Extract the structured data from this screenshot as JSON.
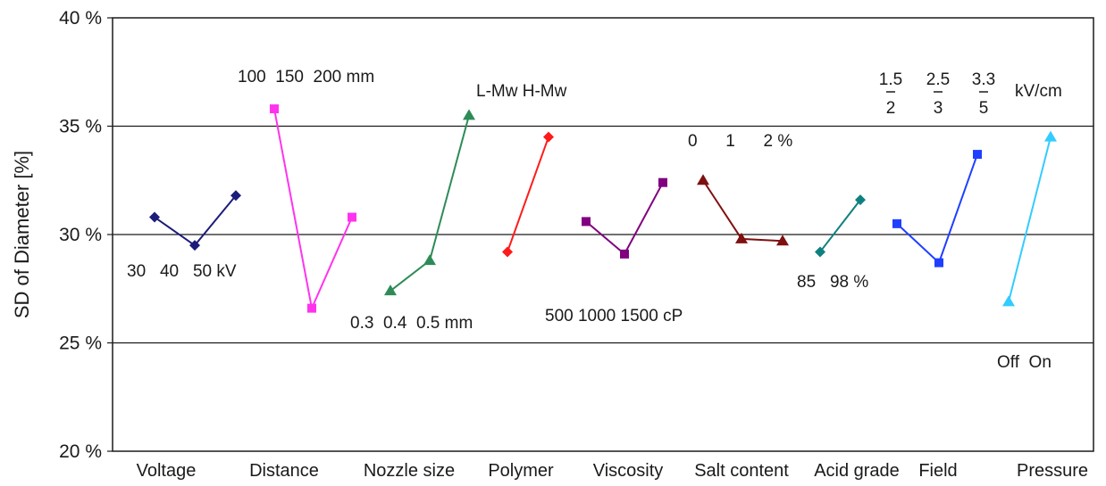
{
  "chart_data": {
    "type": "line",
    "title": "",
    "xlabel": "",
    "ylabel": "SD of Diameter [%]",
    "ylim": [
      20,
      40
    ],
    "yticks": [
      20,
      25,
      30,
      35,
      40
    ],
    "ytick_labels": [
      "20 %",
      "25 %",
      "30 %",
      "35 %",
      "40 %"
    ],
    "grid": true,
    "legend": "none",
    "categories": [
      "Voltage",
      "Distance",
      "Nozzle size",
      "Polymer",
      "Viscosity",
      "Salt content",
      "Acid grade",
      "Field",
      "Pressure"
    ],
    "series": [
      {
        "color": "#1c1c7a",
        "marker": "diamond",
        "points": [
          30.8,
          29.5,
          31.8
        ],
        "levels": [
          "30",
          "40",
          "50 kV"
        ]
      },
      {
        "color": "#ff33ee",
        "marker": "square",
        "points": [
          35.8,
          26.6,
          30.8
        ],
        "levels": [
          "100",
          "150",
          "200 mm"
        ]
      },
      {
        "color": "#2e8b57",
        "marker": "triangle",
        "points": [
          27.4,
          28.8,
          35.5
        ],
        "levels": [
          "0.3",
          "0.4",
          "0.5 mm"
        ]
      },
      {
        "color": "#ff1a1a",
        "marker": "diamond",
        "points": [
          29.2,
          34.5
        ],
        "levels": [
          "L-Mw",
          "H-Mw"
        ]
      },
      {
        "color": "#800080",
        "marker": "square",
        "points": [
          30.6,
          29.1,
          32.4
        ],
        "levels": [
          "500",
          "1000",
          "1500 cP"
        ]
      },
      {
        "color": "#7f1010",
        "marker": "triangle",
        "points": [
          32.5,
          29.8,
          29.7
        ],
        "levels": [
          "0",
          "1",
          "2 %"
        ]
      },
      {
        "color": "#0f8080",
        "marker": "diamond",
        "points": [
          29.2,
          31.6
        ],
        "levels": [
          "85",
          "98 %"
        ]
      },
      {
        "color": "#1f3fff",
        "marker": "square",
        "points": [
          30.5,
          28.7,
          33.7
        ],
        "levels": [
          "1.5/2",
          "2.5/3",
          "3.3/5 kV/cm"
        ]
      },
      {
        "color": "#33ccff",
        "marker": "triangle",
        "points": [
          26.9,
          34.5
        ],
        "levels": [
          "Off",
          "On"
        ]
      }
    ],
    "annotations": {
      "voltage": "30   40   50 kV",
      "distance": "100  150  200 mm",
      "nozzle": "0.3  0.4  0.5 mm",
      "polymer": "L-Mw H-Mw",
      "viscosity": "500 1000 1500 cP",
      "salt": "0      1      2 %",
      "acid": "85   98 %",
      "field_top": [
        "1.5",
        "2.5",
        "3.3"
      ],
      "field_bottom": [
        "2",
        "3",
        "5"
      ],
      "field_unit": "kV/cm",
      "pressure": "Off  On"
    }
  }
}
